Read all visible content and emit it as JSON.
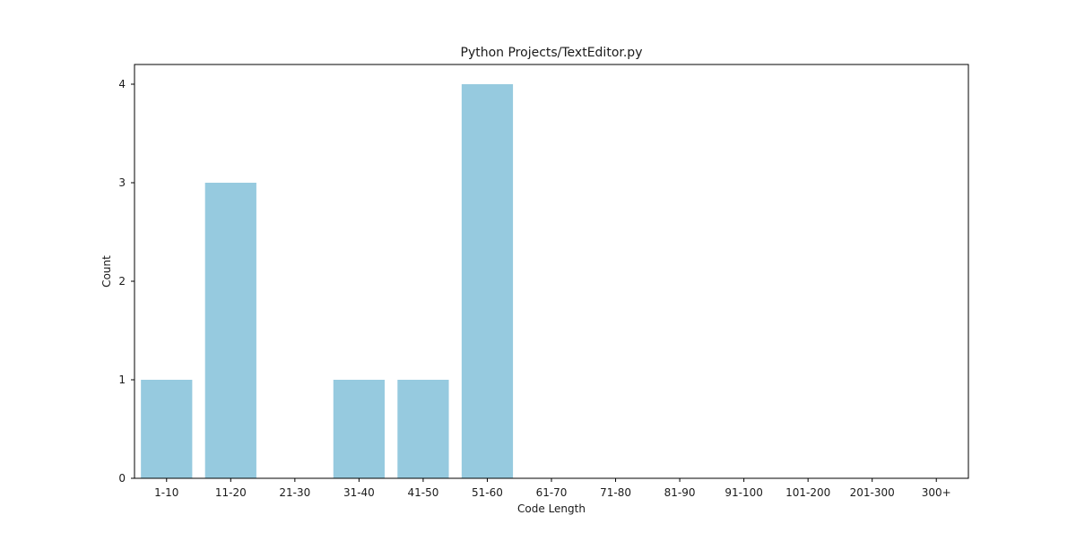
{
  "chart_data": {
    "type": "bar",
    "title": "Python Projects/TextEditor.py",
    "xlabel": "Code Length",
    "ylabel": "Count",
    "categories": [
      "1-10",
      "11-20",
      "21-30",
      "31-40",
      "41-50",
      "51-60",
      "61-70",
      "71-80",
      "81-90",
      "91-100",
      "101-200",
      "201-300",
      "300+"
    ],
    "values": [
      1,
      3,
      0,
      1,
      1,
      4,
      0,
      0,
      0,
      0,
      0,
      0,
      0
    ],
    "yticks": [
      0,
      1,
      2,
      3,
      4
    ],
    "ylim": [
      0,
      4.2
    ],
    "grid": false,
    "bar_color": "#96CADF"
  }
}
